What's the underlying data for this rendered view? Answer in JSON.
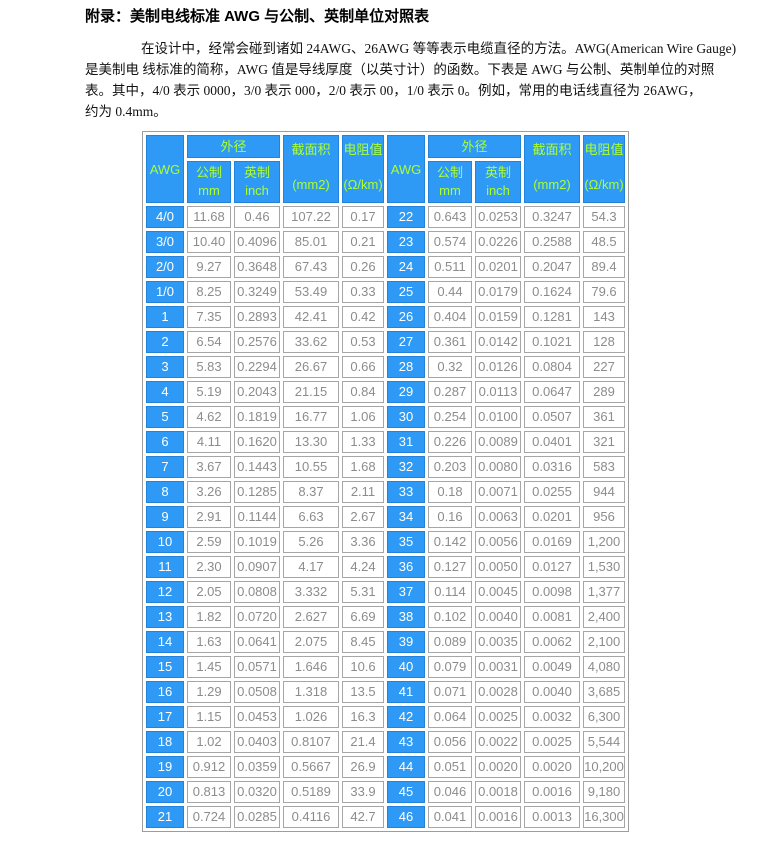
{
  "page": {
    "title": "附录：美制电线标准 AWG 与公制、英制单位对照表",
    "paragraph_lines": [
      "在设计中，经常会碰到诸如 24AWG、26AWG 等等表示电缆直径的方法。AWG(American Wire Gauge)",
      "是美制电 线标准的简称，AWG 值是导线厚度（以英寸计）的函数。下表是 AWG 与公制、英制单位的对照",
      "表。其中，4/0 表示 0000，3/0 表示 000，2/0 表示 00，1/0 表示 0。例如，常用的电话线直径为 26AWG，",
      "约为 0.4mm。"
    ]
  },
  "colors": {
    "header_blue": "#2e9af5",
    "header_text_green": "#adff2f",
    "awg_cell_text": "#ffffff",
    "value_text_gray": "#8c8c8c",
    "cell_border_gray": "#a6a6a6",
    "blue_cell_border": "#2382d9"
  },
  "table": {
    "header": {
      "awg": "AWG",
      "outer_diameter": "外径",
      "metric_label": "公制",
      "metric_unit": "mm",
      "imperial_label": "英制",
      "imperial_unit": "inch",
      "area_label": "截面积",
      "area_unit": "(mm2)",
      "resistance_label": "电阻值",
      "resistance_unit": "(Ω/km)"
    },
    "rows": [
      [
        "4/0",
        "11.68",
        "0.46",
        "107.22",
        "0.17",
        "22",
        "0.643",
        "0.0253",
        "0.3247",
        "54.3"
      ],
      [
        "3/0",
        "10.40",
        "0.4096",
        "85.01",
        "0.21",
        "23",
        "0.574",
        "0.0226",
        "0.2588",
        "48.5"
      ],
      [
        "2/0",
        "9.27",
        "0.3648",
        "67.43",
        "0.26",
        "24",
        "0.511",
        "0.0201",
        "0.2047",
        "89.4"
      ],
      [
        "1/0",
        "8.25",
        "0.3249",
        "53.49",
        "0.33",
        "25",
        "0.44",
        "0.0179",
        "0.1624",
        "79.6"
      ],
      [
        "1",
        "7.35",
        "0.2893",
        "42.41",
        "0.42",
        "26",
        "0.404",
        "0.0159",
        "0.1281",
        "143"
      ],
      [
        "2",
        "6.54",
        "0.2576",
        "33.62",
        "0.53",
        "27",
        "0.361",
        "0.0142",
        "0.1021",
        "128"
      ],
      [
        "3",
        "5.83",
        "0.2294",
        "26.67",
        "0.66",
        "28",
        "0.32",
        "0.0126",
        "0.0804",
        "227"
      ],
      [
        "4",
        "5.19",
        "0.2043",
        "21.15",
        "0.84",
        "29",
        "0.287",
        "0.0113",
        "0.0647",
        "289"
      ],
      [
        "5",
        "4.62",
        "0.1819",
        "16.77",
        "1.06",
        "30",
        "0.254",
        "0.0100",
        "0.0507",
        "361"
      ],
      [
        "6",
        "4.11",
        "0.1620",
        "13.30",
        "1.33",
        "31",
        "0.226",
        "0.0089",
        "0.0401",
        "321"
      ],
      [
        "7",
        "3.67",
        "0.1443",
        "10.55",
        "1.68",
        "32",
        "0.203",
        "0.0080",
        "0.0316",
        "583"
      ],
      [
        "8",
        "3.26",
        "0.1285",
        "8.37",
        "2.11",
        "33",
        "0.18",
        "0.0071",
        "0.0255",
        "944"
      ],
      [
        "9",
        "2.91",
        "0.1144",
        "6.63",
        "2.67",
        "34",
        "0.16",
        "0.0063",
        "0.0201",
        "956"
      ],
      [
        "10",
        "2.59",
        "0.1019",
        "5.26",
        "3.36",
        "35",
        "0.142",
        "0.0056",
        "0.0169",
        "1,200"
      ],
      [
        "11",
        "2.30",
        "0.0907",
        "4.17",
        "4.24",
        "36",
        "0.127",
        "0.0050",
        "0.0127",
        "1,530"
      ],
      [
        "12",
        "2.05",
        "0.0808",
        "3.332",
        "5.31",
        "37",
        "0.114",
        "0.0045",
        "0.0098",
        "1,377"
      ],
      [
        "13",
        "1.82",
        "0.0720",
        "2.627",
        "6.69",
        "38",
        "0.102",
        "0.0040",
        "0.0081",
        "2,400"
      ],
      [
        "14",
        "1.63",
        "0.0641",
        "2.075",
        "8.45",
        "39",
        "0.089",
        "0.0035",
        "0.0062",
        "2,100"
      ],
      [
        "15",
        "1.45",
        "0.0571",
        "1.646",
        "10.6",
        "40",
        "0.079",
        "0.0031",
        "0.0049",
        "4,080"
      ],
      [
        "16",
        "1.29",
        "0.0508",
        "1.318",
        "13.5",
        "41",
        "0.071",
        "0.0028",
        "0.0040",
        "3,685"
      ],
      [
        "17",
        "1.15",
        "0.0453",
        "1.026",
        "16.3",
        "42",
        "0.064",
        "0.0025",
        "0.0032",
        "6,300"
      ],
      [
        "18",
        "1.02",
        "0.0403",
        "0.8107",
        "21.4",
        "43",
        "0.056",
        "0.0022",
        "0.0025",
        "5,544"
      ],
      [
        "19",
        "0.912",
        "0.0359",
        "0.5667",
        "26.9",
        "44",
        "0.051",
        "0.0020",
        "0.0020",
        "10,200"
      ],
      [
        "20",
        "0.813",
        "0.0320",
        "0.5189",
        "33.9",
        "45",
        "0.046",
        "0.0018",
        "0.0016",
        "9,180"
      ],
      [
        "21",
        "0.724",
        "0.0285",
        "0.4116",
        "42.7",
        "46",
        "0.041",
        "0.0016",
        "0.0013",
        "16,300"
      ]
    ]
  }
}
